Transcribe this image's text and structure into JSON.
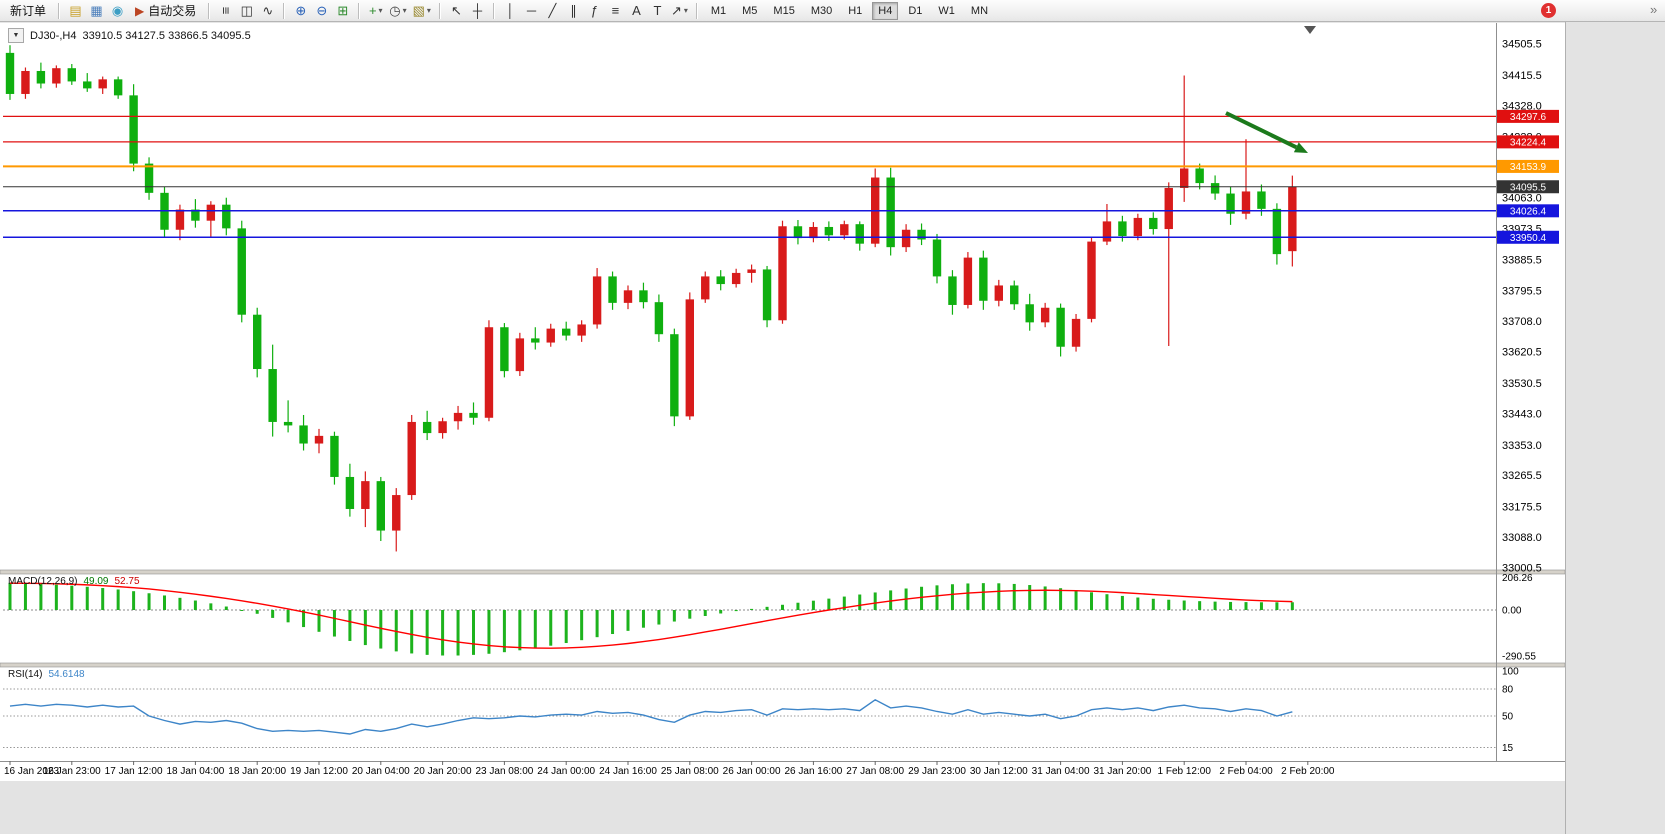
{
  "toolbar": {
    "groups": [
      {
        "items": [
          {
            "name": "new-order-button",
            "label": "新订单"
          }
        ]
      },
      {
        "items": [
          {
            "name": "charts-window-button",
            "glyph": "▤",
            "color": "#c8a028"
          },
          {
            "name": "data-window-button",
            "glyph": "▦",
            "color": "#4a7ebb"
          },
          {
            "name": "navigator-button",
            "glyph": "◉",
            "color": "#3b9ec4"
          },
          {
            "name": "auto-trading-button",
            "glyph": "▶",
            "color": "#bb4422",
            "label": "自动交易"
          }
        ]
      },
      {
        "items": [
          {
            "name": "bar-chart-type-button",
            "glyph": "≡",
            "rotate": true
          },
          {
            "name": "candlestick-chart-type-button",
            "glyph": "◫"
          },
          {
            "name": "line-chart-type-button",
            "glyph": "∿"
          }
        ]
      },
      {
        "items": [
          {
            "name": "zoom-in-button",
            "glyph": "⊕",
            "color": "#2a62b8"
          },
          {
            "name": "zoom-out-button",
            "glyph": "⊖",
            "color": "#2a62b8"
          },
          {
            "name": "tile-windows-button",
            "glyph": "⊞",
            "color": "#2e8b2e"
          }
        ]
      },
      {
        "items": [
          {
            "name": "indicators-button",
            "glyph": "+",
            "color": "#2e8b2e",
            "dropdown": true
          },
          {
            "name": "periods-button",
            "glyph": "◷",
            "color": "#444444",
            "dropdown": true
          },
          {
            "name": "templates-button",
            "glyph": "▧",
            "color": "#9a8a30",
            "dropdown": true
          }
        ]
      },
      {
        "items": [
          {
            "name": "cursor-button",
            "glyph": "↖"
          },
          {
            "name": "crosshair-button",
            "glyph": "┼"
          }
        ]
      },
      {
        "items": [
          {
            "name": "vertical-line-button",
            "glyph": "│"
          },
          {
            "name": "horizontal-line-button",
            "glyph": "─"
          },
          {
            "name": "trendline-button",
            "glyph": "╱"
          },
          {
            "name": "equidistant-channel-button",
            "glyph": "∥"
          },
          {
            "name": "fibonacci-button",
            "glyph": "ƒ"
          },
          {
            "name": "comment-lines-button",
            "glyph": "≡"
          },
          {
            "name": "text-button",
            "glyph": "A"
          },
          {
            "name": "text-label-button",
            "glyph": "T"
          },
          {
            "name": "arrows-button",
            "glyph": "↗",
            "dropdown": true
          }
        ]
      }
    ],
    "timeframes": [
      "M1",
      "M5",
      "M15",
      "M30",
      "H1",
      "H4",
      "D1",
      "W1",
      "MN"
    ],
    "active_timeframe": "H4",
    "notification_badge": "1",
    "overflow_glyph": "»"
  },
  "chart": {
    "symbol_period": "DJ30-,H4",
    "ohlc_text": "33910.5 34127.5 33866.5 34095.5",
    "symbol_dropdown_glyph": "▼"
  },
  "macd": {
    "name": "MACD(12,26,9)",
    "value_main": "49.09",
    "value_signal": "52.75"
  },
  "rsi": {
    "name": "RSI(14)",
    "value": "54.6148"
  },
  "chart_data": {
    "type": "candlestick",
    "symbol": "DJ30-",
    "period": "H4",
    "last_ohlc": {
      "open": 33910.5,
      "high": 34127.5,
      "low": 33866.5,
      "close": 34095.5
    },
    "ylim": [
      33000.5,
      34505.5
    ],
    "up_color": "#d81b1b",
    "down_color": "#0faf0f",
    "candles": [
      [
        34480,
        34502,
        34345,
        34362
      ],
      [
        34362,
        34438,
        34348,
        34428
      ],
      [
        34428,
        34452,
        34378,
        34392
      ],
      [
        34392,
        34444,
        34380,
        34436
      ],
      [
        34436,
        34448,
        34388,
        34398
      ],
      [
        34398,
        34422,
        34368,
        34378
      ],
      [
        34378,
        34412,
        34362,
        34404
      ],
      [
        34404,
        34412,
        34348,
        34358
      ],
      [
        34358,
        34390,
        34140,
        34162
      ],
      [
        34162,
        34180,
        34058,
        34078
      ],
      [
        34078,
        34096,
        33952,
        33972
      ],
      [
        33972,
        34044,
        33942,
        34030
      ],
      [
        34030,
        34060,
        33978,
        33998
      ],
      [
        33998,
        34054,
        33950,
        34044
      ],
      [
        34044,
        34064,
        33956,
        33976
      ],
      [
        33976,
        33998,
        33706,
        33728
      ],
      [
        33728,
        33748,
        33548,
        33572
      ],
      [
        33572,
        33642,
        33378,
        33420
      ],
      [
        33420,
        33482,
        33390,
        33410
      ],
      [
        33410,
        33440,
        33338,
        33358
      ],
      [
        33358,
        33400,
        33330,
        33380
      ],
      [
        33380,
        33392,
        33240,
        33262
      ],
      [
        33262,
        33300,
        33148,
        33170
      ],
      [
        33170,
        33278,
        33118,
        33250
      ],
      [
        33250,
        33262,
        33078,
        33108
      ],
      [
        33108,
        33230,
        33048,
        33210
      ],
      [
        33210,
        33440,
        33196,
        33420
      ],
      [
        33420,
        33452,
        33368,
        33388
      ],
      [
        33388,
        33432,
        33372,
        33422
      ],
      [
        33422,
        33466,
        33398,
        33446
      ],
      [
        33446,
        33476,
        33412,
        33432
      ],
      [
        33432,
        33712,
        33422,
        33692
      ],
      [
        33692,
        33704,
        33548,
        33566
      ],
      [
        33566,
        33676,
        33552,
        33660
      ],
      [
        33660,
        33692,
        33628,
        33648
      ],
      [
        33648,
        33702,
        33636,
        33688
      ],
      [
        33688,
        33708,
        33654,
        33668
      ],
      [
        33668,
        33712,
        33650,
        33700
      ],
      [
        33700,
        33862,
        33688,
        33838
      ],
      [
        33838,
        33852,
        33742,
        33762
      ],
      [
        33762,
        33812,
        33744,
        33798
      ],
      [
        33798,
        33820,
        33746,
        33764
      ],
      [
        33764,
        33786,
        33650,
        33672
      ],
      [
        33672,
        33688,
        33408,
        33436
      ],
      [
        33436,
        33792,
        33426,
        33772
      ],
      [
        33772,
        33852,
        33762,
        33838
      ],
      [
        33838,
        33856,
        33798,
        33816
      ],
      [
        33816,
        33860,
        33806,
        33848
      ],
      [
        33848,
        33872,
        33820,
        33858
      ],
      [
        33858,
        33868,
        33692,
        33712
      ],
      [
        33712,
        33998,
        33702,
        33982
      ],
      [
        33982,
        34000,
        33930,
        33948
      ],
      [
        33948,
        33994,
        33936,
        33980
      ],
      [
        33980,
        33996,
        33940,
        33956
      ],
      [
        33956,
        33998,
        33944,
        33988
      ],
      [
        33988,
        33996,
        33912,
        33932
      ],
      [
        33932,
        34148,
        33922,
        34122
      ],
      [
        34122,
        34150,
        33898,
        33922
      ],
      [
        33922,
        33988,
        33908,
        33972
      ],
      [
        33972,
        33990,
        33928,
        33944
      ],
      [
        33944,
        33960,
        33818,
        33838
      ],
      [
        33838,
        33856,
        33728,
        33756
      ],
      [
        33756,
        33908,
        33746,
        33892
      ],
      [
        33892,
        33912,
        33742,
        33768
      ],
      [
        33768,
        33828,
        33752,
        33812
      ],
      [
        33812,
        33826,
        33742,
        33758
      ],
      [
        33758,
        33788,
        33682,
        33706
      ],
      [
        33706,
        33762,
        33692,
        33748
      ],
      [
        33748,
        33760,
        33608,
        33636
      ],
      [
        33636,
        33730,
        33622,
        33716
      ],
      [
        33716,
        33952,
        33706,
        33938
      ],
      [
        33938,
        34046,
        33928,
        33996
      ],
      [
        33996,
        34012,
        33938,
        33954
      ],
      [
        33954,
        34018,
        33942,
        34006
      ],
      [
        34006,
        34022,
        33958,
        33974
      ],
      [
        33974,
        34108,
        33638,
        34092
      ],
      [
        34092,
        34415,
        34052,
        34148
      ],
      [
        34148,
        34162,
        34088,
        34106
      ],
      [
        34106,
        34128,
        34058,
        34076
      ],
      [
        34076,
        34096,
        33986,
        34018
      ],
      [
        34018,
        34232,
        34002,
        34082
      ],
      [
        34082,
        34102,
        34012,
        34032
      ],
      [
        34032,
        34048,
        33872,
        33902
      ],
      [
        33910.5,
        34127.5,
        33866.5,
        34095.5
      ]
    ],
    "horizontal_levels": [
      {
        "price": 34297.6,
        "text": "34297.6",
        "color": "#e01010",
        "width": 1.2
      },
      {
        "price": 34224.4,
        "text": "34224.4",
        "color": "#e01010",
        "width": 1.2
      },
      {
        "price": 34153.9,
        "text": "34153.9",
        "color": "#ff9900",
        "width": 2
      },
      {
        "price": 34095.5,
        "text": "34095.5",
        "color": "#333333",
        "width": 1
      },
      {
        "price": 34026.4,
        "text": "34026.4",
        "color": "#1515dd",
        "width": 1.5
      },
      {
        "price": 33950.4,
        "text": "33950.4",
        "color": "#1515dd",
        "width": 1.5
      }
    ],
    "price_axis_ticks": [
      "34505.5",
      "34415.5",
      "34328.0",
      "34238.0",
      "34150.5",
      "34063.0",
      "33973.5",
      "33885.5",
      "33795.5",
      "33708.0",
      "33620.5",
      "33530.5",
      "33443.0",
      "33353.0",
      "33265.5",
      "33175.5",
      "33088.0",
      "33000.5"
    ],
    "time_axis_ticks": [
      "16 Jan 2023",
      "16 Jan 23:00",
      "17 Jan 12:00",
      "18 Jan 04:00",
      "18 Jan 20:00",
      "19 Jan 12:00",
      "20 Jan 04:00",
      "20 Jan 20:00",
      "23 Jan 08:00",
      "24 Jan 00:00",
      "24 Jan 16:00",
      "25 Jan 08:00",
      "26 Jan 00:00",
      "26 Jan 16:00",
      "27 Jan 08:00",
      "29 Jan 23:00",
      "30 Jan 12:00",
      "31 Jan 04:00",
      "31 Jan 20:00",
      "1 Feb 12:00",
      "2 Feb 04:00",
      "2 Feb 20:00"
    ],
    "indicators": [
      {
        "name": "MACD",
        "params": "12,26,9",
        "values": {
          "macd": 49.09,
          "signal": 52.75
        },
        "axis_ticks": [
          "206.26",
          "0.00",
          "-290.55"
        ],
        "histogram_color": "#1db31d",
        "signal_color": "#ff0000",
        "histogram": [
          172,
          169,
          165,
          160,
          154,
          147,
          139,
          130,
          119,
          106,
          92,
          77,
          60,
          42,
          22,
          0,
          -24,
          -50,
          -78,
          -108,
          -138,
          -168,
          -196,
          -222,
          -244,
          -262,
          -275,
          -284,
          -288,
          -288,
          -284,
          -277,
          -267,
          -255,
          -241,
          -226,
          -209,
          -191,
          -172,
          -152,
          -132,
          -112,
          -92,
          -73,
          -55,
          -38,
          -22,
          -7,
          7,
          20,
          33,
          46,
          59,
          72,
          85,
          98,
          111,
          124,
          136,
          147,
          156,
          163,
          168,
          170,
          169,
          165,
          158,
          149,
          138,
          125,
          112,
          100,
          89,
          79,
          71,
          65,
          60,
          56,
          53,
          51,
          50,
          49,
          49,
          49
        ],
        "signal_line": [
          170,
          169,
          168,
          166,
          163,
          159,
          154,
          148,
          141,
          133,
          123,
          112,
          100,
          87,
          73,
          58,
          42,
          25,
          7,
          -12,
          -32,
          -53,
          -74,
          -95,
          -116,
          -136,
          -155,
          -173,
          -189,
          -203,
          -215,
          -225,
          -233,
          -238,
          -241,
          -242,
          -240,
          -236,
          -230,
          -222,
          -212,
          -200,
          -187,
          -172,
          -156,
          -139,
          -122,
          -104,
          -86,
          -68,
          -50,
          -33,
          -16,
          0,
          15,
          30,
          44,
          57,
          69,
          80,
          90,
          99,
          107,
          113,
          118,
          122,
          124,
          125,
          124,
          122,
          119,
          115,
          110,
          104,
          98,
          92,
          86,
          80,
          74,
          68,
          63,
          59,
          56,
          53
        ]
      },
      {
        "name": "RSI",
        "params": "14",
        "value": 54.6148,
        "axis_ticks": [
          "100",
          "80",
          "50",
          "15"
        ],
        "levels": [
          80,
          50,
          15
        ],
        "line_color": "#3d85c8",
        "line": [
          61,
          63,
          61,
          63,
          62,
          60,
          62,
          60,
          61,
          50,
          45,
          41,
          44,
          43,
          45,
          42,
          36,
          33,
          34,
          33,
          34,
          32,
          30,
          35,
          33,
          36,
          41,
          38,
          41,
          45,
          48,
          47,
          48,
          50,
          49,
          51,
          52,
          51,
          55,
          53,
          54,
          51,
          46,
          43,
          51,
          55,
          54,
          56,
          57,
          51,
          58,
          57,
          58,
          57,
          58,
          56,
          68,
          59,
          61,
          59,
          55,
          52,
          57,
          52,
          54,
          52,
          50,
          52,
          47,
          50,
          57,
          59,
          57,
          59,
          56,
          60,
          62,
          59,
          58,
          55,
          58,
          56,
          50,
          54.6
        ]
      }
    ],
    "annotation_arrow": {
      "type": "arrow",
      "color": "#1c7a1c",
      "from": [
        1226,
        113
      ],
      "to": [
        1308,
        153
      ]
    }
  }
}
